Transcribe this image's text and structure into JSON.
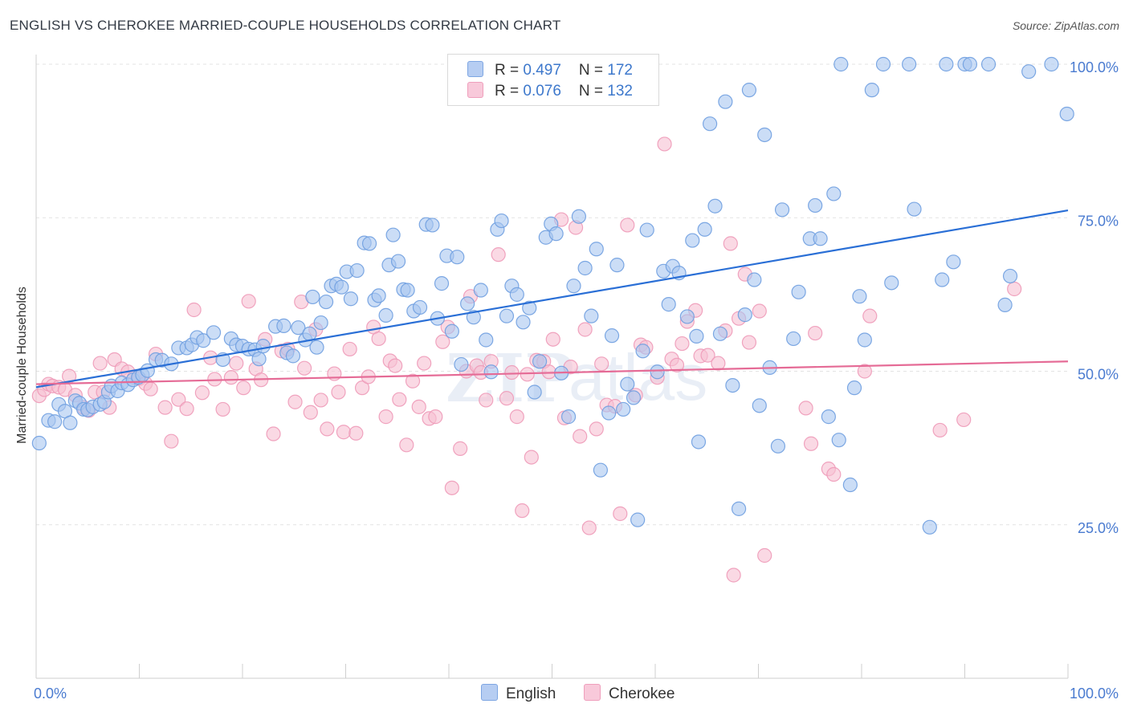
{
  "title": "ENGLISH VS CHEROKEE MARRIED-COUPLE HOUSEHOLDS CORRELATION CHART",
  "source": "Source: ZipAtlas.com",
  "legend": {
    "english": {
      "r_label": "R = ",
      "r_value": "0.497",
      "n_label": "N = ",
      "n_value": "172"
    },
    "cherokee": {
      "r_label": "R = ",
      "r_value": "0.076",
      "n_label": "N = ",
      "n_value": "132"
    }
  },
  "bottom_legend": {
    "english": "English",
    "cherokee": "Cherokee"
  },
  "colors": {
    "english_fill": "#a9c6f0",
    "english_stroke": "#6f9ee0",
    "english_line": "#2a6fd6",
    "cherokee_fill": "#f6bfd2",
    "cherokee_stroke": "#ee9ab8",
    "cherokee_line": "#e56b96",
    "axis_label": "#4a7bd0"
  },
  "chart_data": {
    "type": "scatter",
    "title": "ENGLISH VS CHEROKEE MARRIED-COUPLE HOUSEHOLDS CORRELATION CHART",
    "xlabel": "",
    "ylabel": "Married-couple Households",
    "xlim": [
      0,
      100
    ],
    "ylim": [
      0,
      104
    ],
    "x_tick_labels": [
      "0.0%",
      "100.0%"
    ],
    "y_ticks": [
      25,
      50,
      75,
      100
    ],
    "y_tick_labels": [
      "25.0%",
      "50.0%",
      "75.0%",
      "100.0%"
    ],
    "grid": true,
    "legend_position": "top-center",
    "series": [
      {
        "name": "English",
        "trend": {
          "x": [
            0,
            100
          ],
          "y": [
            47.4,
            76.2
          ]
        },
        "points": [
          [
            0.3,
            38.3
          ],
          [
            1.2,
            42.0
          ],
          [
            1.8,
            41.8
          ],
          [
            2.2,
            44.6
          ],
          [
            2.8,
            43.5
          ],
          [
            3.3,
            41.6
          ],
          [
            3.8,
            45.2
          ],
          [
            4.2,
            44.8
          ],
          [
            4.6,
            43.8
          ],
          [
            5.0,
            43.7
          ],
          [
            5.5,
            44.2
          ],
          [
            6.2,
            44.6
          ],
          [
            6.6,
            45.0
          ],
          [
            7.0,
            46.6
          ],
          [
            7.3,
            47.6
          ],
          [
            7.9,
            46.8
          ],
          [
            8.3,
            48.1
          ],
          [
            8.9,
            47.8
          ],
          [
            9.4,
            48.6
          ],
          [
            9.9,
            49.0
          ],
          [
            10.3,
            49.4
          ],
          [
            10.8,
            50.1
          ],
          [
            11.6,
            51.9
          ],
          [
            12.2,
            51.8
          ],
          [
            13.1,
            51.2
          ],
          [
            13.8,
            53.8
          ],
          [
            14.6,
            53.8
          ],
          [
            15.1,
            54.3
          ],
          [
            15.6,
            55.5
          ],
          [
            16.2,
            55.0
          ],
          [
            17.2,
            56.3
          ],
          [
            18.1,
            51.9
          ],
          [
            18.9,
            55.3
          ],
          [
            19.4,
            54.3
          ],
          [
            20.0,
            54.1
          ],
          [
            20.6,
            53.6
          ],
          [
            21.2,
            53.5
          ],
          [
            21.6,
            52.0
          ],
          [
            22.0,
            54.1
          ],
          [
            23.2,
            57.3
          ],
          [
            24.0,
            57.4
          ],
          [
            24.3,
            53.0
          ],
          [
            24.9,
            52.5
          ],
          [
            25.4,
            57.1
          ],
          [
            26.1,
            55.1
          ],
          [
            26.5,
            56.1
          ],
          [
            26.8,
            62.1
          ],
          [
            27.2,
            53.9
          ],
          [
            27.6,
            57.9
          ],
          [
            28.1,
            61.3
          ],
          [
            28.6,
            63.9
          ],
          [
            29.1,
            64.2
          ],
          [
            29.6,
            63.7
          ],
          [
            30.1,
            66.2
          ],
          [
            30.5,
            61.8
          ],
          [
            31.1,
            66.4
          ],
          [
            31.8,
            70.9
          ],
          [
            32.3,
            70.8
          ],
          [
            32.8,
            61.6
          ],
          [
            33.2,
            62.3
          ],
          [
            33.9,
            59.1
          ],
          [
            34.2,
            67.3
          ],
          [
            34.6,
            72.2
          ],
          [
            35.1,
            67.9
          ],
          [
            35.6,
            63.3
          ],
          [
            36.0,
            63.2
          ],
          [
            36.6,
            59.8
          ],
          [
            37.2,
            60.4
          ],
          [
            37.8,
            73.9
          ],
          [
            38.4,
            73.8
          ],
          [
            38.9,
            58.6
          ],
          [
            39.3,
            64.3
          ],
          [
            39.8,
            68.8
          ],
          [
            40.3,
            56.5
          ],
          [
            40.8,
            68.6
          ],
          [
            41.2,
            51.1
          ],
          [
            41.8,
            61.0
          ],
          [
            42.4,
            58.8
          ],
          [
            43.1,
            63.2
          ],
          [
            43.6,
            55.1
          ],
          [
            44.1,
            49.9
          ],
          [
            44.7,
            73.1
          ],
          [
            45.1,
            74.5
          ],
          [
            45.6,
            59.0
          ],
          [
            46.1,
            63.9
          ],
          [
            46.6,
            62.5
          ],
          [
            47.2,
            58.0
          ],
          [
            47.8,
            60.3
          ],
          [
            48.3,
            46.6
          ],
          [
            48.8,
            51.6
          ],
          [
            49.4,
            71.8
          ],
          [
            49.9,
            74.0
          ],
          [
            50.4,
            72.4
          ],
          [
            50.9,
            49.7
          ],
          [
            51.6,
            42.6
          ],
          [
            52.1,
            63.9
          ],
          [
            52.6,
            75.2
          ],
          [
            53.2,
            66.8
          ],
          [
            53.8,
            59.0
          ],
          [
            54.3,
            69.9
          ],
          [
            54.7,
            33.9
          ],
          [
            55.5,
            43.2
          ],
          [
            55.8,
            55.8
          ],
          [
            56.3,
            67.3
          ],
          [
            56.9,
            43.8
          ],
          [
            57.3,
            47.9
          ],
          [
            57.9,
            45.7
          ],
          [
            58.3,
            25.8
          ],
          [
            58.8,
            53.3
          ],
          [
            59.2,
            73.0
          ],
          [
            60.2,
            49.9
          ],
          [
            60.8,
            66.3
          ],
          [
            61.3,
            60.9
          ],
          [
            61.7,
            67.1
          ],
          [
            62.3,
            66.0
          ],
          [
            63.1,
            58.9
          ],
          [
            63.6,
            71.3
          ],
          [
            64.0,
            55.7
          ],
          [
            64.2,
            38.5
          ],
          [
            64.8,
            73.1
          ],
          [
            65.3,
            90.3
          ],
          [
            65.8,
            76.9
          ],
          [
            66.3,
            56.1
          ],
          [
            66.8,
            93.9
          ],
          [
            67.5,
            47.7
          ],
          [
            68.1,
            27.6
          ],
          [
            68.7,
            59.2
          ],
          [
            69.1,
            95.8
          ],
          [
            69.6,
            64.9
          ],
          [
            70.1,
            44.4
          ],
          [
            70.6,
            88.5
          ],
          [
            71.1,
            50.6
          ],
          [
            71.9,
            37.8
          ],
          [
            72.3,
            76.3
          ],
          [
            73.4,
            55.3
          ],
          [
            73.9,
            62.9
          ],
          [
            75.0,
            71.6
          ],
          [
            75.5,
            77.0
          ],
          [
            76.0,
            71.6
          ],
          [
            76.8,
            42.6
          ],
          [
            77.3,
            78.9
          ],
          [
            77.8,
            38.8
          ],
          [
            78.0,
            100.0
          ],
          [
            78.9,
            31.5
          ],
          [
            79.3,
            47.3
          ],
          [
            79.8,
            62.2
          ],
          [
            80.3,
            55.1
          ],
          [
            81.0,
            95.8
          ],
          [
            82.1,
            100.0
          ],
          [
            82.9,
            64.4
          ],
          [
            84.6,
            100.0
          ],
          [
            85.1,
            76.4
          ],
          [
            86.6,
            24.6
          ],
          [
            87.8,
            64.9
          ],
          [
            88.2,
            100.0
          ],
          [
            88.9,
            67.8
          ],
          [
            90.0,
            100.0
          ],
          [
            90.5,
            100.0
          ],
          [
            92.3,
            100.0
          ],
          [
            93.9,
            60.8
          ],
          [
            94.4,
            65.5
          ],
          [
            96.2,
            98.8
          ],
          [
            98.4,
            100.0
          ],
          [
            99.9,
            91.9
          ]
        ]
      },
      {
        "name": "Cherokee",
        "trend": {
          "x": [
            0,
            100
          ],
          "y": [
            47.9,
            51.6
          ]
        },
        "points": [
          [
            0.3,
            46.0
          ],
          [
            0.8,
            47.0
          ],
          [
            1.2,
            47.9
          ],
          [
            1.6,
            47.6
          ],
          [
            2.2,
            47.4
          ],
          [
            2.8,
            47.0
          ],
          [
            3.2,
            49.2
          ],
          [
            3.8,
            46.1
          ],
          [
            4.6,
            44.1
          ],
          [
            5.1,
            43.6
          ],
          [
            5.7,
            46.6
          ],
          [
            6.2,
            51.3
          ],
          [
            6.5,
            46.6
          ],
          [
            7.1,
            44.1
          ],
          [
            7.6,
            51.9
          ],
          [
            8.3,
            50.4
          ],
          [
            8.9,
            49.9
          ],
          [
            9.5,
            49.0
          ],
          [
            10.0,
            48.8
          ],
          [
            10.6,
            48.0
          ],
          [
            11.1,
            47.1
          ],
          [
            11.6,
            52.8
          ],
          [
            12.5,
            44.1
          ],
          [
            13.1,
            38.6
          ],
          [
            13.8,
            45.4
          ],
          [
            14.6,
            43.9
          ],
          [
            15.3,
            60.0
          ],
          [
            16.1,
            46.5
          ],
          [
            16.9,
            52.2
          ],
          [
            17.3,
            48.7
          ],
          [
            18.1,
            43.8
          ],
          [
            18.9,
            49.0
          ],
          [
            19.4,
            51.3
          ],
          [
            20.1,
            47.3
          ],
          [
            20.6,
            61.4
          ],
          [
            21.3,
            50.4
          ],
          [
            21.8,
            48.6
          ],
          [
            22.2,
            55.2
          ],
          [
            23.0,
            39.8
          ],
          [
            23.8,
            53.3
          ],
          [
            24.4,
            53.6
          ],
          [
            25.1,
            45.0
          ],
          [
            25.7,
            61.3
          ],
          [
            26.0,
            50.5
          ],
          [
            26.6,
            43.3
          ],
          [
            27.1,
            56.8
          ],
          [
            27.6,
            45.3
          ],
          [
            28.2,
            40.6
          ],
          [
            28.9,
            49.6
          ],
          [
            29.3,
            46.6
          ],
          [
            29.8,
            40.1
          ],
          [
            30.4,
            53.6
          ],
          [
            31.0,
            39.9
          ],
          [
            31.6,
            47.3
          ],
          [
            32.2,
            49.1
          ],
          [
            32.7,
            57.2
          ],
          [
            33.2,
            55.3
          ],
          [
            33.9,
            42.6
          ],
          [
            34.3,
            51.7
          ],
          [
            34.8,
            50.9
          ],
          [
            35.2,
            45.4
          ],
          [
            35.9,
            38.0
          ],
          [
            36.5,
            48.4
          ],
          [
            37.1,
            44.2
          ],
          [
            37.6,
            51.3
          ],
          [
            38.1,
            42.3
          ],
          [
            38.7,
            42.6
          ],
          [
            39.4,
            54.8
          ],
          [
            39.9,
            57.2
          ],
          [
            40.3,
            31.0
          ],
          [
            41.1,
            37.4
          ],
          [
            41.7,
            50.0
          ],
          [
            42.1,
            62.2
          ],
          [
            42.7,
            50.9
          ],
          [
            43.1,
            49.8
          ],
          [
            43.6,
            45.3
          ],
          [
            44.1,
            51.6
          ],
          [
            44.8,
            69.0
          ],
          [
            45.6,
            45.6
          ],
          [
            46.1,
            49.8
          ],
          [
            46.6,
            42.6
          ],
          [
            47.1,
            27.3
          ],
          [
            47.6,
            49.5
          ],
          [
            48.0,
            36.0
          ],
          [
            48.5,
            51.8
          ],
          [
            49.2,
            51.6
          ],
          [
            49.7,
            49.9
          ],
          [
            50.1,
            55.2
          ],
          [
            50.9,
            74.7
          ],
          [
            51.2,
            42.4
          ],
          [
            51.8,
            50.7
          ],
          [
            52.3,
            73.4
          ],
          [
            52.7,
            39.4
          ],
          [
            53.2,
            56.8
          ],
          [
            53.6,
            24.5
          ],
          [
            54.3,
            40.6
          ],
          [
            54.8,
            51.2
          ],
          [
            55.3,
            44.5
          ],
          [
            56.1,
            44.3
          ],
          [
            56.6,
            26.8
          ],
          [
            57.3,
            73.8
          ],
          [
            58.1,
            46.1
          ],
          [
            58.6,
            54.3
          ],
          [
            59.1,
            53.9
          ],
          [
            60.2,
            49.0
          ],
          [
            60.9,
            87.0
          ],
          [
            61.6,
            52.0
          ],
          [
            62.1,
            51.0
          ],
          [
            62.6,
            54.5
          ],
          [
            63.1,
            58.1
          ],
          [
            63.9,
            59.9
          ],
          [
            64.4,
            52.5
          ],
          [
            65.1,
            52.6
          ],
          [
            66.1,
            51.3
          ],
          [
            66.8,
            56.6
          ],
          [
            67.3,
            70.8
          ],
          [
            67.6,
            16.8
          ],
          [
            68.1,
            58.6
          ],
          [
            68.7,
            65.8
          ],
          [
            69.1,
            54.7
          ],
          [
            70.1,
            59.8
          ],
          [
            70.6,
            20.0
          ],
          [
            74.6,
            44.0
          ],
          [
            75.1,
            38.2
          ],
          [
            75.5,
            56.2
          ],
          [
            76.8,
            34.1
          ],
          [
            77.3,
            33.2
          ],
          [
            80.3,
            50.0
          ],
          [
            80.8,
            59.0
          ],
          [
            87.6,
            40.4
          ],
          [
            89.9,
            42.1
          ],
          [
            94.8,
            63.4
          ]
        ]
      }
    ]
  }
}
